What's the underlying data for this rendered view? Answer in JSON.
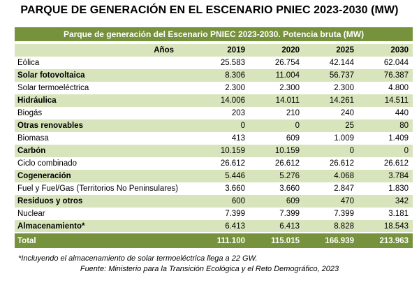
{
  "title": "PARQUE DE GENERACIÓN EN EL ESCENARIO PNIEC 2023-2030 (MW)",
  "table": {
    "caption": "Parque de generación del Escenario PNIEC 2023-2030. Potencia bruta (MW)",
    "header": {
      "label": "Años",
      "years": [
        "2019",
        "2020",
        "2025",
        "2030"
      ]
    },
    "rows": [
      {
        "name": "Eólica",
        "values": [
          "25.583",
          "26.754",
          "42.144",
          "62.044"
        ]
      },
      {
        "name": "Solar fotovoltaica",
        "values": [
          "8.306",
          "11.004",
          "56.737",
          "76.387"
        ]
      },
      {
        "name": "Solar termoeléctrica",
        "values": [
          "2.300",
          "2.300",
          "2.300",
          "4.800"
        ]
      },
      {
        "name": "Hidráulica",
        "values": [
          "14.006",
          "14.011",
          "14.261",
          "14.511"
        ]
      },
      {
        "name": "Biogás",
        "values": [
          "203",
          "210",
          "240",
          "440"
        ]
      },
      {
        "name": "Otras renovables",
        "values": [
          "0",
          "0",
          "25",
          "80"
        ]
      },
      {
        "name": "Biomasa",
        "values": [
          "413",
          "609",
          "1.009",
          "1.409"
        ]
      },
      {
        "name": "Carbón",
        "values": [
          "10.159",
          "10.159",
          "0",
          "0"
        ]
      },
      {
        "name": "Ciclo combinado",
        "values": [
          "26.612",
          "26.612",
          "26.612",
          "26.612"
        ]
      },
      {
        "name": "Cogeneración",
        "values": [
          "5.446",
          "5.276",
          "4.068",
          "3.784"
        ]
      },
      {
        "name": "Fuel y Fuel/Gas (Territorios No Peninsulares)",
        "values": [
          "3.660",
          "3.660",
          "2.847",
          "1.830"
        ]
      },
      {
        "name": "Residuos y otros",
        "values": [
          "600",
          "609",
          "470",
          "342"
        ]
      },
      {
        "name": "Nuclear",
        "values": [
          "7.399",
          "7.399",
          "7.399",
          "3.181"
        ]
      },
      {
        "name": "Almacenamiento*",
        "values": [
          "6.413",
          "6.413",
          "8.828",
          "18.543"
        ]
      }
    ],
    "total": {
      "name": "Total",
      "values": [
        "111.100",
        "115.015",
        "166.939",
        "213.963"
      ]
    }
  },
  "note": "*Incluyendo el almacenamiento de solar termoeléctrica llega a 22 GW.",
  "source": "Fuente: Ministerio para la Transición Ecológica y el Reto Demográfico, 2023"
}
